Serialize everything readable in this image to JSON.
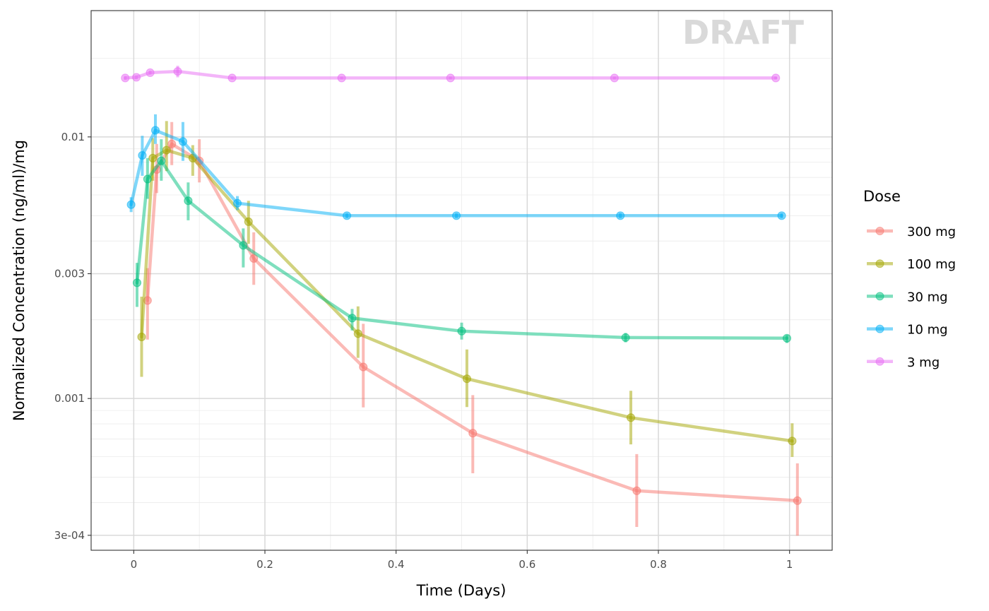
{
  "chart_data": {
    "type": "line",
    "title": "",
    "xlabel": "Time (Days)",
    "ylabel": "Normalized Concentration (ng/ml)/mg",
    "y_scale": "log10",
    "xlim": [
      -0.065,
      1.065
    ],
    "ylim": [
      0.000263,
      0.0304
    ],
    "x_ticks": [
      0,
      0.2,
      0.4,
      0.6,
      0.8,
      1
    ],
    "x_tick_labels": [
      "0",
      "0.2",
      "0.4",
      "0.6",
      "0.8",
      "1"
    ],
    "y_ticks": [
      0.0003,
      0.001,
      0.003,
      0.01
    ],
    "y_tick_labels": [
      "3e-04",
      "0.001",
      "0.003",
      "0.01"
    ],
    "grid": true,
    "watermark": "DRAFT",
    "legend": {
      "title": "Dose",
      "position": "right"
    },
    "series": [
      {
        "name": "300 mg",
        "color": "#F8766D",
        "x": [
          0.021,
          0.035,
          0.058,
          0.1,
          0.183,
          0.35,
          0.517,
          0.767,
          1.012
        ],
        "y": [
          0.00237,
          0.0075,
          0.0094,
          0.0081,
          0.00343,
          0.00132,
          0.000737,
          0.000444,
          0.000407
        ],
        "err_low": [
          0.00168,
          0.0061,
          0.0078,
          0.0067,
          0.00272,
          0.000925,
          0.000518,
          0.000323,
          0.000299
        ],
        "err_high": [
          0.00315,
          0.0094,
          0.0114,
          0.0098,
          0.00432,
          0.00193,
          0.00103,
          0.000613,
          0.000565
        ]
      },
      {
        "name": "100 mg",
        "color": "#A3A500",
        "x": [
          0.012,
          0.029,
          0.05,
          0.09,
          0.175,
          0.342,
          0.508,
          0.758,
          1.004
        ],
        "y": [
          0.00172,
          0.0083,
          0.0089,
          0.0083,
          0.00474,
          0.00177,
          0.00119,
          0.000845,
          0.000688
        ],
        "err_low": [
          0.00121,
          0.0068,
          0.0074,
          0.0071,
          0.0039,
          0.00143,
          0.000928,
          0.000668,
          0.000598
        ],
        "err_high": [
          0.00245,
          0.0099,
          0.0115,
          0.0093,
          0.0057,
          0.00225,
          0.00154,
          0.00107,
          0.000804
        ]
      },
      {
        "name": "30 mg",
        "color": "#00BF7D",
        "x": [
          0.005,
          0.021,
          0.042,
          0.083,
          0.167,
          0.333,
          0.5,
          0.75,
          0.996
        ],
        "y": [
          0.00277,
          0.0069,
          0.0081,
          0.0057,
          0.00385,
          0.00203,
          0.00181,
          0.00171,
          0.0017
        ],
        "err_low": [
          0.00224,
          0.0058,
          0.0068,
          0.0048,
          0.00317,
          0.00182,
          0.00168,
          0.00164,
          0.00163
        ],
        "err_high": [
          0.0033,
          0.0083,
          0.0098,
          0.0067,
          0.00447,
          0.0022,
          0.00195,
          0.00178,
          0.00175
        ]
      },
      {
        "name": "10 mg",
        "color": "#00B0F6",
        "x": [
          -0.004,
          0.013,
          0.033,
          0.075,
          0.158,
          0.325,
          0.492,
          0.742,
          0.988
        ],
        "y": [
          0.00551,
          0.0085,
          0.0106,
          0.0096,
          0.00558,
          0.005,
          0.005,
          0.005,
          0.005
        ],
        "err_low": [
          0.00516,
          0.0071,
          0.0094,
          0.0081,
          0.00525,
          0.00489,
          0.00489,
          0.00489,
          0.00489
        ],
        "err_high": [
          0.00588,
          0.0101,
          0.0122,
          0.0114,
          0.00594,
          0.00511,
          0.00511,
          0.00511,
          0.00511
        ]
      },
      {
        "name": "3 mg",
        "color": "#E76BF3",
        "x": [
          -0.013,
          0.004,
          0.025,
          0.067,
          0.15,
          0.317,
          0.483,
          0.733,
          0.979
        ],
        "y": [
          0.0168,
          0.0169,
          0.0176,
          0.0178,
          0.0168,
          0.0168,
          0.0168,
          0.0168,
          0.0168
        ],
        "err_low": [
          0.0165,
          0.0166,
          0.0173,
          0.0169,
          0.0166,
          0.0166,
          0.0166,
          0.0166,
          0.0166
        ],
        "err_high": [
          0.0171,
          0.0172,
          0.0179,
          0.0187,
          0.017,
          0.017,
          0.017,
          0.017,
          0.017
        ]
      }
    ]
  }
}
